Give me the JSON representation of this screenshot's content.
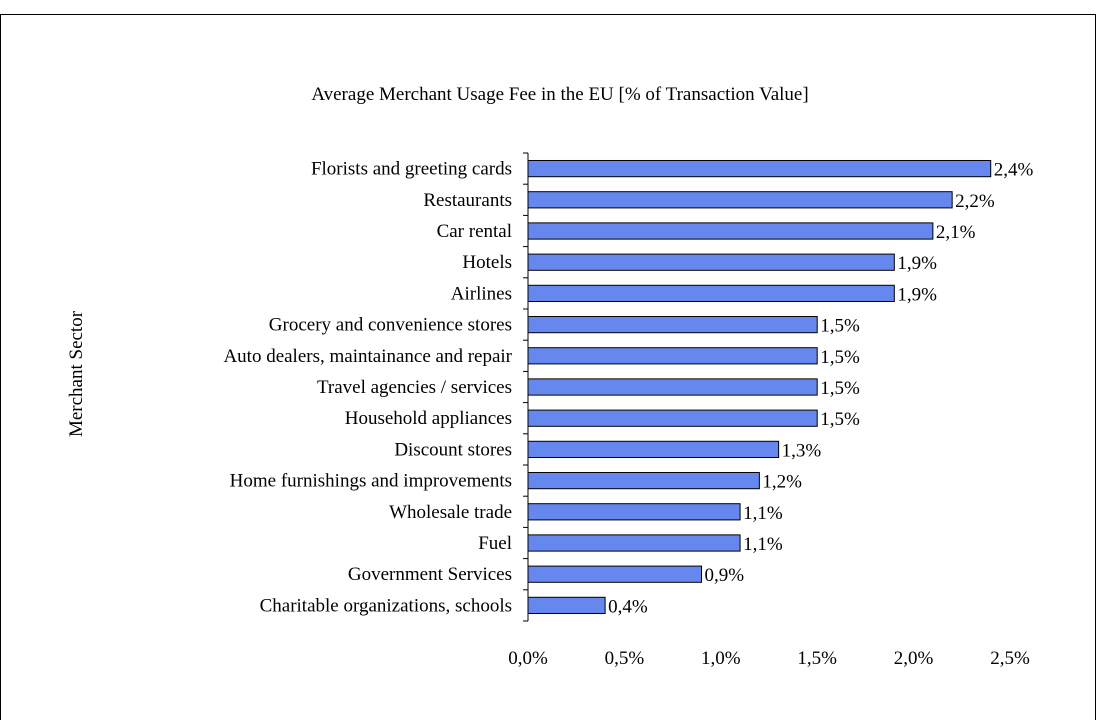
{
  "chart_data": {
    "type": "bar",
    "orientation": "horizontal",
    "title": "Average Merchant Usage Fee in the EU [% of Transaction Value]",
    "ylabel": "Merchant Sector",
    "xlabel": "",
    "categories": [
      "Florists and greeting cards",
      "Restaurants",
      "Car rental",
      "Hotels",
      "Airlines",
      "Grocery and convenience stores",
      "Auto dealers, maintainance and repair",
      "Travel agencies / services",
      "Household appliances",
      "Discount stores",
      "Home furnishings and improvements",
      "Wholesale trade",
      "Fuel",
      "Government Services",
      "Charitable organizations, schools"
    ],
    "values": [
      2.4,
      2.2,
      2.1,
      1.9,
      1.9,
      1.5,
      1.5,
      1.5,
      1.5,
      1.3,
      1.2,
      1.1,
      1.1,
      0.9,
      0.4
    ],
    "data_labels": [
      "2,4%",
      "2,2%",
      "2,1%",
      "1,9%",
      "1,9%",
      "1,5%",
      "1,5%",
      "1,5%",
      "1,5%",
      "1,3%",
      "1,2%",
      "1,1%",
      "1,1%",
      "0,9%",
      "0,4%"
    ],
    "xlim": [
      0,
      2.5
    ],
    "xticks": [
      0,
      0.5,
      1.0,
      1.5,
      2.0,
      2.5
    ],
    "xtick_labels": [
      "0,0%",
      "0,5%",
      "1,0%",
      "1,5%",
      "2,0%",
      "2,5%"
    ],
    "grid": false,
    "legend": "none",
    "bar_color": "#6688ee",
    "bar_border_color": "#000000"
  }
}
